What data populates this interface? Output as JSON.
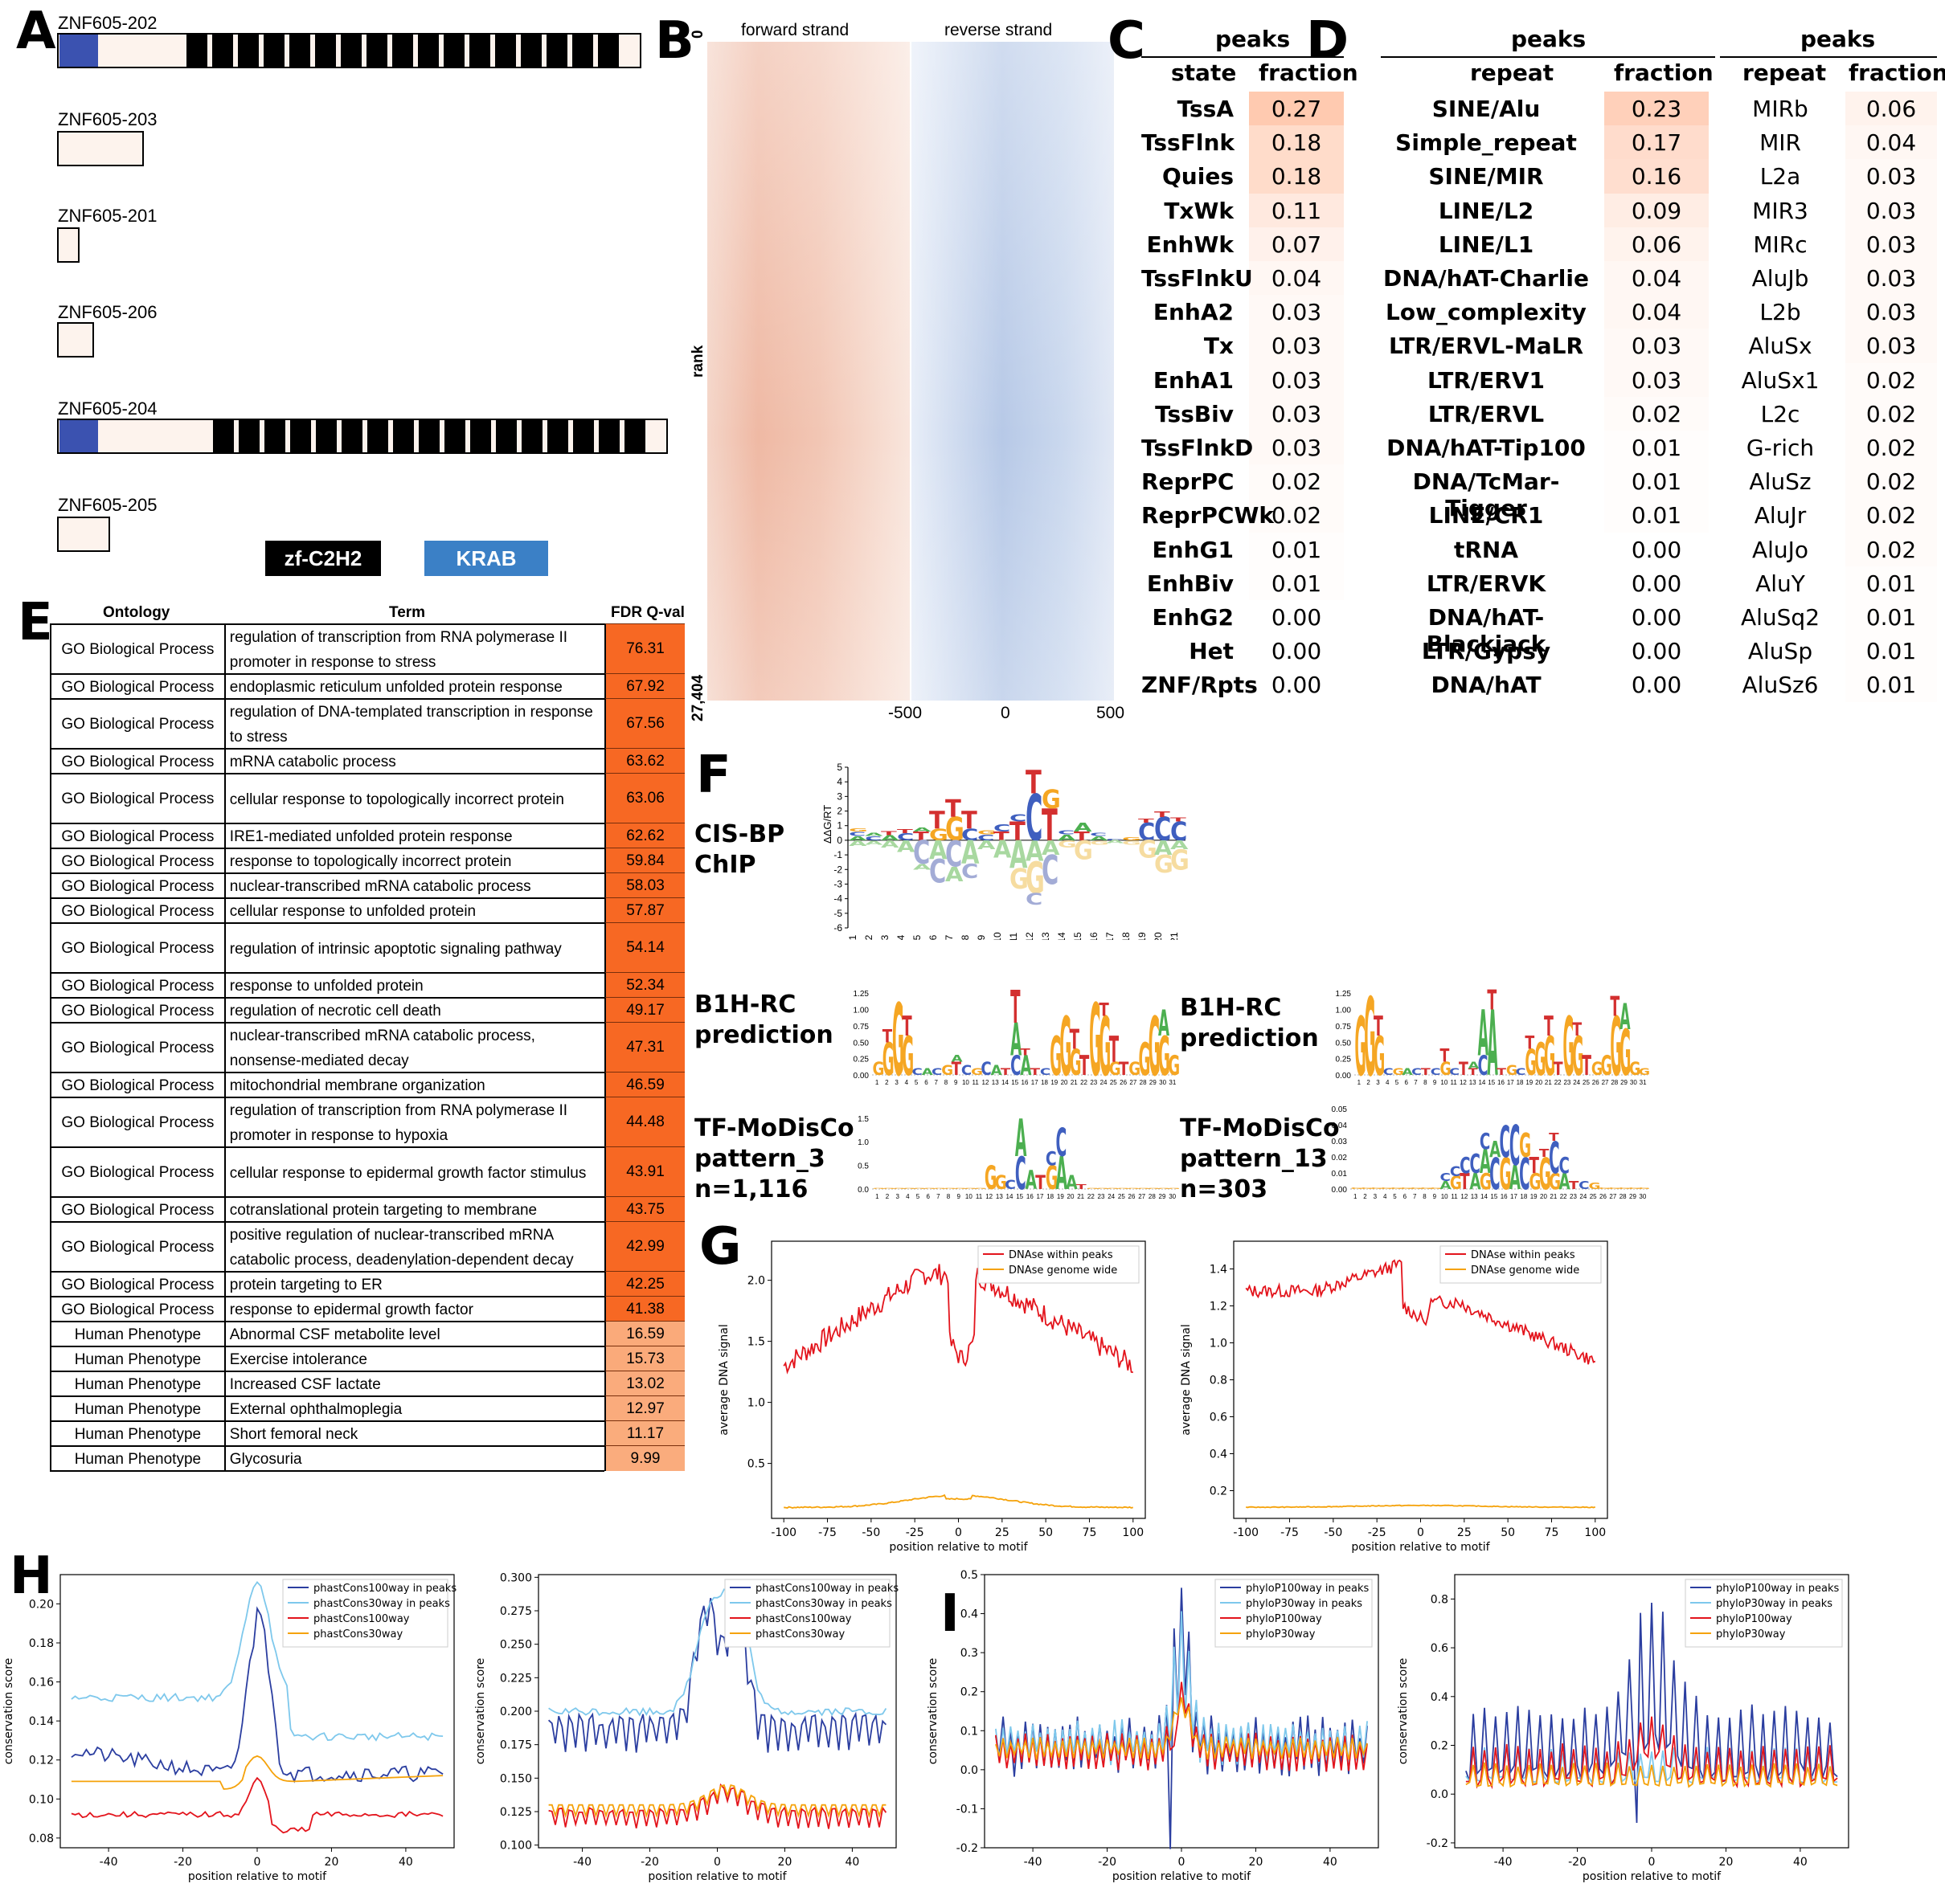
{
  "panels": {
    "A": "A",
    "B": "B",
    "C": "C",
    "D": "D",
    "E": "E",
    "F": "F",
    "G": "G",
    "H": "H",
    "I": "I"
  },
  "panel_a": {
    "transcripts": [
      "ZNF605-202",
      "ZNF605-203",
      "ZNF605-201",
      "ZNF605-206",
      "ZNF605-204",
      "ZNF605-205"
    ],
    "legend": {
      "zf": "zf-C2H2",
      "krab": "KRAB"
    },
    "colors": {
      "krab": "#3b52b0",
      "zf": "#000000",
      "other": "#fdf3ed",
      "legend_krab": "#3b80c6"
    }
  },
  "panel_b": {
    "forward": "forward strand",
    "reverse": "reverse strand",
    "ylabel": "rank",
    "ytop": "0",
    "ybottom": "27,404",
    "xticks": [
      "-500",
      "0",
      "500"
    ]
  },
  "panel_c": {
    "header": "peaks",
    "col1": "state",
    "col2": "fraction",
    "rows": [
      {
        "state": "TssA",
        "fraction": "0.27"
      },
      {
        "state": "TssFlnk",
        "fraction": "0.18"
      },
      {
        "state": "Quies",
        "fraction": "0.18"
      },
      {
        "state": "TxWk",
        "fraction": "0.11"
      },
      {
        "state": "EnhWk",
        "fraction": "0.07"
      },
      {
        "state": "TssFlnkU",
        "fraction": "0.04"
      },
      {
        "state": "EnhA2",
        "fraction": "0.03"
      },
      {
        "state": "Tx",
        "fraction": "0.03"
      },
      {
        "state": "EnhA1",
        "fraction": "0.03"
      },
      {
        "state": "TssBiv",
        "fraction": "0.03"
      },
      {
        "state": "TssFlnkD",
        "fraction": "0.03"
      },
      {
        "state": "ReprPC",
        "fraction": "0.02"
      },
      {
        "state": "ReprPCWk",
        "fraction": "0.02"
      },
      {
        "state": "EnhG1",
        "fraction": "0.01"
      },
      {
        "state": "EnhBiv",
        "fraction": "0.01"
      },
      {
        "state": "EnhG2",
        "fraction": "0.00"
      },
      {
        "state": "Het",
        "fraction": "0.00"
      },
      {
        "state": "ZNF/Rpts",
        "fraction": "0.00"
      }
    ]
  },
  "panel_d": {
    "left": {
      "header": "peaks",
      "col1": "repeat",
      "col2": "fraction",
      "rows": [
        {
          "repeat": "SINE/Alu",
          "fraction": "0.23"
        },
        {
          "repeat": "Simple_repeat",
          "fraction": "0.17"
        },
        {
          "repeat": "SINE/MIR",
          "fraction": "0.16"
        },
        {
          "repeat": "LINE/L2",
          "fraction": "0.09"
        },
        {
          "repeat": "LINE/L1",
          "fraction": "0.06"
        },
        {
          "repeat": "DNA/hAT-Charlie",
          "fraction": "0.04"
        },
        {
          "repeat": "Low_complexity",
          "fraction": "0.04"
        },
        {
          "repeat": "LTR/ERVL-MaLR",
          "fraction": "0.03"
        },
        {
          "repeat": "LTR/ERV1",
          "fraction": "0.03"
        },
        {
          "repeat": "LTR/ERVL",
          "fraction": "0.02"
        },
        {
          "repeat": "DNA/hAT-Tip100",
          "fraction": "0.01"
        },
        {
          "repeat": "DNA/TcMar-Tigger",
          "fraction": "0.01"
        },
        {
          "repeat": "LINE/CR1",
          "fraction": "0.01"
        },
        {
          "repeat": "tRNA",
          "fraction": "0.00"
        },
        {
          "repeat": "LTR/ERVK",
          "fraction": "0.00"
        },
        {
          "repeat": "DNA/hAT-Blackjack",
          "fraction": "0.00"
        },
        {
          "repeat": "LTR/Gypsy",
          "fraction": "0.00"
        },
        {
          "repeat": "DNA/hAT",
          "fraction": "0.00"
        }
      ]
    },
    "right": {
      "header": "peaks",
      "col1": "repeat",
      "col2": "fraction",
      "rows": [
        {
          "repeat": "MIRb",
          "fraction": "0.06"
        },
        {
          "repeat": "MIR",
          "fraction": "0.04"
        },
        {
          "repeat": "L2a",
          "fraction": "0.03"
        },
        {
          "repeat": "MIR3",
          "fraction": "0.03"
        },
        {
          "repeat": "MIRc",
          "fraction": "0.03"
        },
        {
          "repeat": "AluJb",
          "fraction": "0.03"
        },
        {
          "repeat": "L2b",
          "fraction": "0.03"
        },
        {
          "repeat": "AluSx",
          "fraction": "0.03"
        },
        {
          "repeat": "AluSx1",
          "fraction": "0.02"
        },
        {
          "repeat": "L2c",
          "fraction": "0.02"
        },
        {
          "repeat": "G-rich",
          "fraction": "0.02"
        },
        {
          "repeat": "AluSz",
          "fraction": "0.02"
        },
        {
          "repeat": "AluJr",
          "fraction": "0.02"
        },
        {
          "repeat": "AluJo",
          "fraction": "0.02"
        },
        {
          "repeat": "AluY",
          "fraction": "0.01"
        },
        {
          "repeat": "AluSq2",
          "fraction": "0.01"
        },
        {
          "repeat": "AluSp",
          "fraction": "0.01"
        },
        {
          "repeat": "AluSz6",
          "fraction": "0.01"
        }
      ]
    }
  },
  "panel_e": {
    "headers": {
      "ontology": "Ontology",
      "term": "Term",
      "fdr": "FDR Q-val"
    },
    "rows": [
      {
        "ontology": "GO Biological Process",
        "term": "regulation of transcription from RNA polymerase II promoter in response to stress",
        "q": "76.31"
      },
      {
        "ontology": "GO Biological Process",
        "term": "endoplasmic reticulum unfolded protein response",
        "q": "67.92"
      },
      {
        "ontology": "GO Biological Process",
        "term": "regulation of DNA-templated transcription in response to stress",
        "q": "67.56"
      },
      {
        "ontology": "GO Biological Process",
        "term": "mRNA catabolic process",
        "q": "63.62"
      },
      {
        "ontology": "GO Biological Process",
        "term": "cellular response to topologically incorrect protein",
        "q": "63.06"
      },
      {
        "ontology": "GO Biological Process",
        "term": "IRE1-mediated unfolded protein response",
        "q": "62.62"
      },
      {
        "ontology": "GO Biological Process",
        "term": "response to topologically incorrect protein",
        "q": "59.84"
      },
      {
        "ontology": "GO Biological Process",
        "term": "nuclear-transcribed mRNA catabolic process",
        "q": "58.03"
      },
      {
        "ontology": "GO Biological Process",
        "term": "cellular response to unfolded protein",
        "q": "57.87"
      },
      {
        "ontology": "GO Biological Process",
        "term": "regulation of intrinsic apoptotic signaling pathway",
        "q": "54.14"
      },
      {
        "ontology": "GO Biological Process",
        "term": "response to unfolded protein",
        "q": "52.34"
      },
      {
        "ontology": "GO Biological Process",
        "term": "regulation of necrotic cell death",
        "q": "49.17"
      },
      {
        "ontology": "GO Biological Process",
        "term": "nuclear-transcribed mRNA catabolic process, nonsense-mediated decay",
        "q": "47.31"
      },
      {
        "ontology": "GO Biological Process",
        "term": "mitochondrial membrane organization",
        "q": "46.59"
      },
      {
        "ontology": "GO Biological Process",
        "term": "regulation of transcription from RNA polymerase II promoter in response to hypoxia",
        "q": "44.48"
      },
      {
        "ontology": "GO Biological Process",
        "term": "cellular response to epidermal growth factor stimulus",
        "q": "43.91"
      },
      {
        "ontology": "GO Biological Process",
        "term": "cotranslational protein targeting to membrane",
        "q": "43.75"
      },
      {
        "ontology": "GO Biological Process",
        "term": "positive regulation of nuclear-transcribed mRNA catabolic process, deadenylation-dependent decay",
        "q": "42.99"
      },
      {
        "ontology": "GO Biological Process",
        "term": "protein targeting to ER",
        "q": "42.25"
      },
      {
        "ontology": "GO Biological Process",
        "term": "response to epidermal growth factor",
        "q": "41.38"
      },
      {
        "ontology": "Human Phenotype",
        "term": "Abnormal CSF metabolite level",
        "q": "16.59"
      },
      {
        "ontology": "Human Phenotype",
        "term": "Exercise intolerance",
        "q": "15.73"
      },
      {
        "ontology": "Human Phenotype",
        "term": "Increased CSF lactate",
        "q": "13.02"
      },
      {
        "ontology": "Human Phenotype",
        "term": "External ophthalmoplegia",
        "q": "12.97"
      },
      {
        "ontology": "Human Phenotype",
        "term": "Short femoral neck",
        "q": "11.17"
      },
      {
        "ontology": "Human Phenotype",
        "term": "Glycosuria",
        "q": "9.99"
      }
    ]
  },
  "panel_f": {
    "cisbp": "CIS-BP",
    "chip": "ChIP",
    "ylabel": "ΔΔG/RT",
    "yticks": [
      "5",
      "4",
      "3",
      "2",
      "1",
      "0",
      "-1",
      "-2",
      "-3",
      "-4",
      "-5",
      "-6"
    ],
    "xticks": [
      "1",
      "2",
      "3",
      "4",
      "5",
      "6",
      "7",
      "8",
      "9",
      "10",
      "11",
      "12",
      "13",
      "14",
      "15",
      "16",
      "17",
      "18",
      "19",
      "20",
      "21"
    ],
    "b1h_1": "B1H-RC",
    "b1h_2": "prediction",
    "b1h_yticks": [
      "1.25",
      "1.00",
      "0.75",
      "0.50",
      "0.25",
      "0.00"
    ],
    "modisco_left": {
      "l1": "TF-MoDisCo",
      "l2": "pattern_3",
      "l3": "n=1,116",
      "yticks": [
        "1.5",
        "1.0",
        "0.5",
        "0.0"
      ]
    },
    "modisco_right": {
      "l1": "TF-MoDisCo",
      "l2": "pattern_13",
      "l3": "n=303",
      "yticks": [
        "0.05",
        "0.04",
        "0.03",
        "0.02",
        "0.01",
        "0.00"
      ]
    }
  },
  "panel_g": {
    "ylabel": "average DNA signal",
    "xlabel": "position relative to motif",
    "legend": [
      "DNAse within peaks",
      "DNAse genome wide"
    ],
    "colors": [
      "#e3141c",
      "#f5a20a"
    ],
    "left": {
      "yticks": [
        "2.0",
        "1.5",
        "1.0",
        "0.5"
      ],
      "ylim": [
        0.05,
        2.32
      ]
    },
    "right": {
      "yticks": [
        "1.4",
        "1.2",
        "1.0",
        "0.8",
        "0.6",
        "0.4",
        "0.2"
      ],
      "ylim": [
        0.05,
        1.55
      ]
    },
    "xticks": [
      "-100",
      "-75",
      "-50",
      "-25",
      "0",
      "25",
      "50",
      "75",
      "100"
    ]
  },
  "panel_h": {
    "ylabel": "conservation score",
    "xlabel": "position relative to motif",
    "legend": [
      "phastCons100way in peaks",
      "phastCons30way in peaks",
      "phastCons100way",
      "phastCons30way"
    ],
    "left_yticks": [
      "0.20",
      "0.18",
      "0.16",
      "0.14",
      "0.12",
      "0.10",
      "0.08"
    ],
    "right_yticks": [
      "0.300",
      "0.275",
      "0.250",
      "0.225",
      "0.200",
      "0.175",
      "0.150",
      "0.125",
      "0.100"
    ],
    "xticks": [
      "-40",
      "-20",
      "0",
      "20",
      "40"
    ]
  },
  "panel_i": {
    "ylabel": "conservation score",
    "xlabel": "position relative to motif",
    "legend": [
      "phyloP100way in peaks",
      "phyloP30way in peaks",
      "phyloP100way",
      "phyloP30way"
    ],
    "left_yticks": [
      "0.5",
      "0.4",
      "0.3",
      "0.2",
      "0.1",
      "0.0",
      "-0.1",
      "-0.2"
    ],
    "right_yticks": [
      "0.8",
      "0.6",
      "0.4",
      "0.2",
      "0.0",
      "-0.2"
    ],
    "xticks": [
      "-40",
      "-20",
      "0",
      "20",
      "40"
    ]
  },
  "line_colors": {
    "dark_blue": "#2b3ea0",
    "light_blue": "#7ec8ec",
    "red": "#e3141c",
    "orange": "#f5a20a"
  }
}
